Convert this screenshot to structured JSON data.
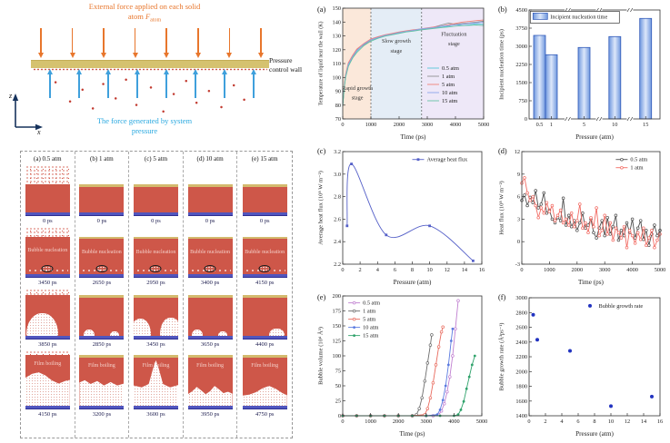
{
  "diagram": {
    "title_line1": "External force applied on each solid",
    "title_line2": "atom",
    "force_symbol": "F",
    "force_sub": "atom",
    "wall_label_line1": "Pressure",
    "wall_label_line2": "control wall",
    "bottom_label_line1": "The force generated by system",
    "bottom_label_line2": "pressure",
    "axis_z": "z",
    "axis_x": "x",
    "colors": {
      "external_force": "#E8762C",
      "system_force": "#3FA0DC",
      "wall": "#D5C26F",
      "atoms": "#C23B30"
    }
  },
  "snapshots": {
    "columns": [
      {
        "header": "(a) 0.5 atm",
        "rows": [
          {
            "time": "0 ps",
            "variant": "liquid",
            "speckle": true
          },
          {
            "label": "Bubble nucleation",
            "time": "3450 ps",
            "variant": "nucleation",
            "speckle": true
          },
          {
            "time": "3850 ps",
            "variant": "growth",
            "speckle": true,
            "bubbles": "large-dome"
          },
          {
            "label": "Film boiling",
            "time": "4150 ps",
            "variant": "film",
            "speckle": true,
            "film_shape": "tall-dome"
          }
        ]
      },
      {
        "header": "(b) 1 atm",
        "rows": [
          {
            "time": "0 ps",
            "variant": "liquid"
          },
          {
            "label": "Bubble nucleation",
            "time": "2650 ps",
            "variant": "nucleation"
          },
          {
            "time": "2850 ps",
            "variant": "growth",
            "bubbles": "two-small"
          },
          {
            "label": "Film boiling",
            "time": "3200 ps",
            "variant": "film",
            "film_shape": "bumpy"
          }
        ]
      },
      {
        "header": "(c) 5 atm",
        "rows": [
          {
            "time": "0 ps",
            "variant": "liquid"
          },
          {
            "label": "Bubble nucleation",
            "time": "2950 ps",
            "variant": "nucleation"
          },
          {
            "time": "3450 ps",
            "variant": "growth",
            "bubbles": "two-medium"
          },
          {
            "label": "Film boiling",
            "time": "3600 ps",
            "variant": "film",
            "film_shape": "v-channel"
          }
        ]
      },
      {
        "header": "(d) 10 atm",
        "rows": [
          {
            "time": "0 ps",
            "variant": "liquid"
          },
          {
            "label": "Bubble nucleation",
            "time": "3400 ps",
            "variant": "nucleation"
          },
          {
            "time": "3650 ps",
            "variant": "growth",
            "bubbles": "two-small"
          },
          {
            "label": "Film boiling",
            "time": "3950 ps",
            "variant": "film",
            "film_shape": "low-bumps"
          }
        ]
      },
      {
        "header": "(e) 15 atm",
        "rows": [
          {
            "time": "0 ps",
            "variant": "liquid"
          },
          {
            "label": "Bubble nucleation",
            "time": "4150 ps",
            "variant": "nucleation"
          },
          {
            "time": "4400 ps",
            "variant": "growth",
            "bubbles": "small-right"
          },
          {
            "label": "Film boiling",
            "time": "4750 ps",
            "variant": "film",
            "film_shape": "low-dome"
          }
        ]
      }
    ]
  },
  "chart_data": [
    {
      "id": "a",
      "panel": "(a)",
      "type": "line",
      "name": "wall-temperature-vs-time-chart",
      "xlabel": "Time (ps)",
      "ylabel": "Temperature of liquid near the wall (K)",
      "ylabel_fs": 5.9,
      "xlim": [
        0,
        5000
      ],
      "ylim": [
        70,
        150
      ],
      "xticks": [
        0,
        1000,
        2000,
        3000,
        4000,
        5000
      ],
      "yticks": [
        70,
        80,
        90,
        100,
        110,
        120,
        130,
        140,
        150
      ],
      "regions": [
        {
          "x0": 0,
          "x1": 1000,
          "color": "#FBE8DA"
        },
        {
          "x0": 1000,
          "x1": 2800,
          "color": "#E4EDF6"
        },
        {
          "x0": 2800,
          "x1": 5000,
          "color": "#EEE8F8"
        }
      ],
      "vlines": [
        {
          "x": 1000
        },
        {
          "x": 2800
        }
      ],
      "annotations": [
        {
          "text": "Rapid growth",
          "x": 520,
          "y": 91
        },
        {
          "text": "stage",
          "x": 520,
          "y": 84
        },
        {
          "text": "Slow growth",
          "x": 1900,
          "y": 125
        },
        {
          "text": "stage",
          "x": 1900,
          "y": 118
        },
        {
          "text": "Fluctuation",
          "x": 3950,
          "y": 130
        },
        {
          "text": "stage",
          "x": 3950,
          "y": 123
        }
      ],
      "x": [
        0,
        50,
        100,
        200,
        350,
        500,
        750,
        1000,
        1250,
        1500,
        1750,
        2000,
        2250,
        2500,
        2750,
        3000,
        3250,
        3500,
        3750,
        4000,
        4250,
        4500,
        4750,
        5000
      ],
      "series": [
        {
          "name": "0.5 atm",
          "color": "#57C7DA",
          "values": [
            80,
            93,
            100,
            109,
            115,
            119,
            124,
            127,
            128.5,
            130,
            131,
            132,
            133,
            133.8,
            134.4,
            135,
            135.8,
            136.2,
            137,
            138.2,
            137.4,
            138,
            138.8,
            138.4
          ]
        },
        {
          "name": "1 atm",
          "color": "#909090",
          "values": [
            80,
            92,
            101,
            110,
            114,
            120,
            123.5,
            127,
            129,
            130,
            131.5,
            132.2,
            133.4,
            134,
            134.8,
            135.4,
            136.4,
            137.8,
            139.2,
            138.4,
            139,
            139.4,
            140,
            140.6
          ]
        },
        {
          "name": "5 atm",
          "color": "#F08078",
          "values": [
            81,
            94,
            102,
            110.5,
            116,
            120.5,
            124.5,
            127.8,
            129.4,
            130.8,
            131.8,
            132.8,
            133.6,
            134.4,
            135,
            135.8,
            136.4,
            137,
            138,
            139,
            140,
            140.4,
            141,
            141.4
          ]
        },
        {
          "name": "10 atm",
          "color": "#8CA4EA",
          "values": [
            80,
            93,
            101,
            109.5,
            115,
            119.5,
            124,
            127.2,
            128.8,
            130.4,
            131.2,
            132.4,
            133.2,
            134,
            134.9,
            135.5,
            136,
            137,
            137.4,
            138,
            138.4,
            139,
            139.4,
            140
          ]
        },
        {
          "name": "15 atm",
          "color": "#66C2A5",
          "values": [
            79,
            92,
            100,
            108,
            114,
            118,
            123,
            126.2,
            128.2,
            129.8,
            130.8,
            131.8,
            132.8,
            133.4,
            134.2,
            134.8,
            135.4,
            136,
            136.4,
            137,
            137.4,
            137.6,
            137.9,
            137.4
          ]
        }
      ],
      "legend": {
        "fx": 0.6,
        "fy": 0.5,
        "w": 44
      },
      "margins": {
        "l": 30,
        "r": 8,
        "t": 6,
        "b": 25
      }
    },
    {
      "id": "b",
      "panel": "(b)",
      "type": "bar",
      "name": "incipient-nucleation-time-chart",
      "xlabel": "Pressure (atm)",
      "ylabel": "Incipient nucleation time (ps)",
      "ylim": [
        0,
        4500
      ],
      "yticks": [
        0,
        750,
        1500,
        2250,
        3000,
        3750,
        4500
      ],
      "categories": [
        "0.5",
        "1",
        "5",
        "10",
        "15"
      ],
      "positions": [
        0.08,
        0.17,
        0.42,
        0.655,
        0.89
      ],
      "values": [
        3450,
        2650,
        2950,
        3400,
        4150
      ],
      "bar_edge": "#3059B8",
      "bar_fill": [
        "#6F97DE",
        "#DCE7FA",
        "#6F97DE"
      ],
      "breaks": [
        0.295,
        0.535,
        0.77
      ],
      "legend": {
        "fx": 0.03,
        "fy": 0.02,
        "w": 98,
        "label": "Incipient nucleation time",
        "boxed": true
      },
      "margins": {
        "l": 36,
        "r": 8,
        "t": 8,
        "b": 25
      }
    },
    {
      "id": "c",
      "panel": "(c)",
      "type": "line",
      "name": "average-heat-flux-chart",
      "xlabel": "Pressure (atm)",
      "ylabel": "Average heat flux (10⁸ W m⁻²)",
      "xlim": [
        0,
        16
      ],
      "ylim": [
        2.2,
        3.2
      ],
      "xticks": [
        0,
        2,
        4,
        6,
        8,
        10,
        12,
        14,
        16
      ],
      "yticks": [
        2.2,
        2.4,
        2.6,
        2.8,
        3.0,
        3.2
      ],
      "ytick_labels": [
        "2.2",
        "2.4",
        "2.6",
        "2.8",
        "3.0",
        "3.2"
      ],
      "x": [
        0.5,
        1,
        5,
        10,
        15
      ],
      "series": [
        {
          "name": "Average heat flux",
          "color": "#5560C8",
          "marker": "square",
          "smooth": true,
          "values": [
            2.54,
            3.09,
            2.46,
            2.54,
            2.23
          ]
        }
      ],
      "legend": {
        "fx": 0.5,
        "fy": 0.03,
        "w": 64
      },
      "margins": {
        "l": 30,
        "r": 10,
        "t": 8,
        "b": 25
      }
    },
    {
      "id": "d",
      "panel": "(d)",
      "type": "line",
      "name": "heat-flux-vs-time-chart",
      "xlabel": "Time (ps)",
      "ylabel": "Heat flux (10⁸ W m⁻²)",
      "xlim": [
        0,
        5000
      ],
      "ylim": [
        -3,
        12
      ],
      "xticks": [
        0,
        1000,
        2000,
        3000,
        4000,
        5000
      ],
      "yticks": [
        -3,
        0,
        3,
        6,
        9,
        12
      ],
      "x": [
        0,
        100,
        200,
        300,
        400,
        500,
        600,
        700,
        800,
        900,
        1000,
        1100,
        1200,
        1300,
        1400,
        1500,
        1600,
        1700,
        1800,
        1900,
        2000,
        2100,
        2200,
        2300,
        2400,
        2500,
        2600,
        2700,
        2800,
        2900,
        3000,
        3100,
        3200,
        3300,
        3400,
        3500,
        3600,
        3700,
        3800,
        3900,
        4000,
        4100,
        4200,
        4300,
        4400,
        4500,
        4600,
        4700,
        4800,
        4900,
        5000
      ],
      "series": [
        {
          "name": "0.5 atm",
          "color": "#4D4D4D",
          "marker": "circle-open",
          "values": [
            5.5,
            6.2,
            4.8,
            5.9,
            5.2,
            6.8,
            4.5,
            5.0,
            6.5,
            3.8,
            4.2,
            3.0,
            2.5,
            3.2,
            2.8,
            5.8,
            2.2,
            3.5,
            2.0,
            2.8,
            1.5,
            2.5,
            3.8,
            1.8,
            2.2,
            3.0,
            1.2,
            0.5,
            1.8,
            2.8,
            0.8,
            3.2,
            1.0,
            2.0,
            3.5,
            0.2,
            1.5,
            0.8,
            2.5,
            1.2,
            3.0,
            0.5,
            1.8,
            2.8,
            0.3,
            1.5,
            -0.5,
            1.0,
            2.2,
            0.8,
            1.5
          ]
        },
        {
          "name": "1 atm",
          "color": "#F26B63",
          "marker": "circle-open",
          "values": [
            7.8,
            8.5,
            6.5,
            5.5,
            6.0,
            4.8,
            3.2,
            4.5,
            3.8,
            5.2,
            4.0,
            4.8,
            2.8,
            3.5,
            4.2,
            2.5,
            3.0,
            2.2,
            3.8,
            2.0,
            2.8,
            5.0,
            1.8,
            2.5,
            1.2,
            3.2,
            2.0,
            4.5,
            0.8,
            1.5,
            3.5,
            1.0,
            2.5,
            0.2,
            1.8,
            1.2,
            0.5,
            2.0,
            -0.8,
            1.5,
            0.8,
            -0.2,
            1.2,
            0.3,
            1.8,
            -0.5,
            0.5,
            1.5,
            -0.8,
            0.2,
            1.0
          ]
        }
      ],
      "legend": {
        "fx": 0.68,
        "fy": 0.03,
        "w": 36
      },
      "margins": {
        "l": 28,
        "r": 8,
        "t": 8,
        "b": 25
      }
    },
    {
      "id": "e",
      "panel": "(e)",
      "type": "line",
      "name": "bubble-volume-vs-time-chart",
      "xlabel": "Time (ps)",
      "ylabel": "Bubble volume (10⁴ Å³)",
      "xlim": [
        0,
        5000
      ],
      "ylim": [
        0,
        200
      ],
      "xticks": [
        0,
        1000,
        2000,
        3000,
        4000,
        5000
      ],
      "yticks": [
        0,
        25,
        50,
        75,
        100,
        125,
        150,
        175,
        200
      ],
      "series": [
        {
          "name": "0.5 atm",
          "color": "#C07FD0",
          "marker": "circle-open",
          "x": [
            0,
            500,
            1000,
            1500,
            2000,
            2500,
            3000,
            3250,
            3450,
            3550,
            3650,
            3750,
            3850,
            3950,
            4050,
            4150
          ],
          "values": [
            0,
            0,
            0,
            0,
            0,
            0,
            0,
            0,
            2,
            8,
            20,
            40,
            65,
            100,
            145,
            192
          ]
        },
        {
          "name": "1 atm",
          "color": "#6B6B6B",
          "marker": "circle-open",
          "x": [
            0,
            500,
            1000,
            1500,
            2000,
            2500,
            2650,
            2750,
            2850,
            2950,
            3050,
            3150,
            3200
          ],
          "values": [
            0,
            0,
            0,
            0,
            0,
            0,
            2,
            12,
            30,
            58,
            88,
            118,
            135
          ]
        },
        {
          "name": "5 atm",
          "color": "#E8695C",
          "marker": "circle-open",
          "x": [
            0,
            500,
            1000,
            1500,
            2000,
            2500,
            2950,
            3050,
            3150,
            3250,
            3350,
            3450,
            3550,
            3600
          ],
          "values": [
            0,
            0,
            0,
            0,
            0,
            0,
            2,
            12,
            30,
            55,
            85,
            115,
            140,
            148
          ]
        },
        {
          "name": "10 atm",
          "color": "#5B7BE0",
          "marker": "circle",
          "x": [
            0,
            500,
            1000,
            1500,
            2000,
            2500,
            3000,
            3400,
            3500,
            3600,
            3700,
            3800,
            3900,
            3950
          ],
          "values": [
            0,
            0,
            0,
            0,
            0,
            0,
            0,
            2,
            10,
            26,
            50,
            85,
            125,
            145
          ]
        },
        {
          "name": "15 atm",
          "color": "#2FA26B",
          "marker": "circle",
          "x": [
            0,
            500,
            1000,
            1500,
            2000,
            2500,
            3000,
            3500,
            4000,
            4150,
            4250,
            4350,
            4450,
            4550,
            4650,
            4750
          ],
          "values": [
            0,
            0,
            0,
            0,
            0,
            0,
            0,
            0,
            0,
            2,
            10,
            24,
            45,
            65,
            85,
            100
          ]
        }
      ],
      "legend": {
        "fx": 0.04,
        "fy": 0.02,
        "w": 40
      },
      "margins": {
        "l": 30,
        "r": 10,
        "t": 6,
        "b": 25
      }
    },
    {
      "id": "f",
      "panel": "(f)",
      "type": "scatter",
      "name": "bubble-growth-rate-chart",
      "xlabel": "Pressure (atm)",
      "ylabel": "Bubble growth rate (Å³ps⁻¹)",
      "xlim": [
        0,
        16
      ],
      "ylim": [
        1400,
        3000
      ],
      "xticks": [
        0,
        2,
        4,
        6,
        8,
        10,
        12,
        14,
        16
      ],
      "yticks": [
        1400,
        1600,
        1800,
        2000,
        2200,
        2400,
        2600,
        2800,
        3000
      ],
      "x": [
        0.5,
        1,
        5,
        10,
        15
      ],
      "series": [
        {
          "name": "Bubble growth rate",
          "color": "#2233C0",
          "marker": "dot",
          "noline": true,
          "values": [
            2770,
            2430,
            2280,
            1530,
            1660
          ]
        }
      ],
      "legend": {
        "fx": 0.42,
        "fy": 0.03,
        "w": 62
      },
      "margins": {
        "l": 36,
        "r": 8,
        "t": 8,
        "b": 25
      }
    }
  ]
}
